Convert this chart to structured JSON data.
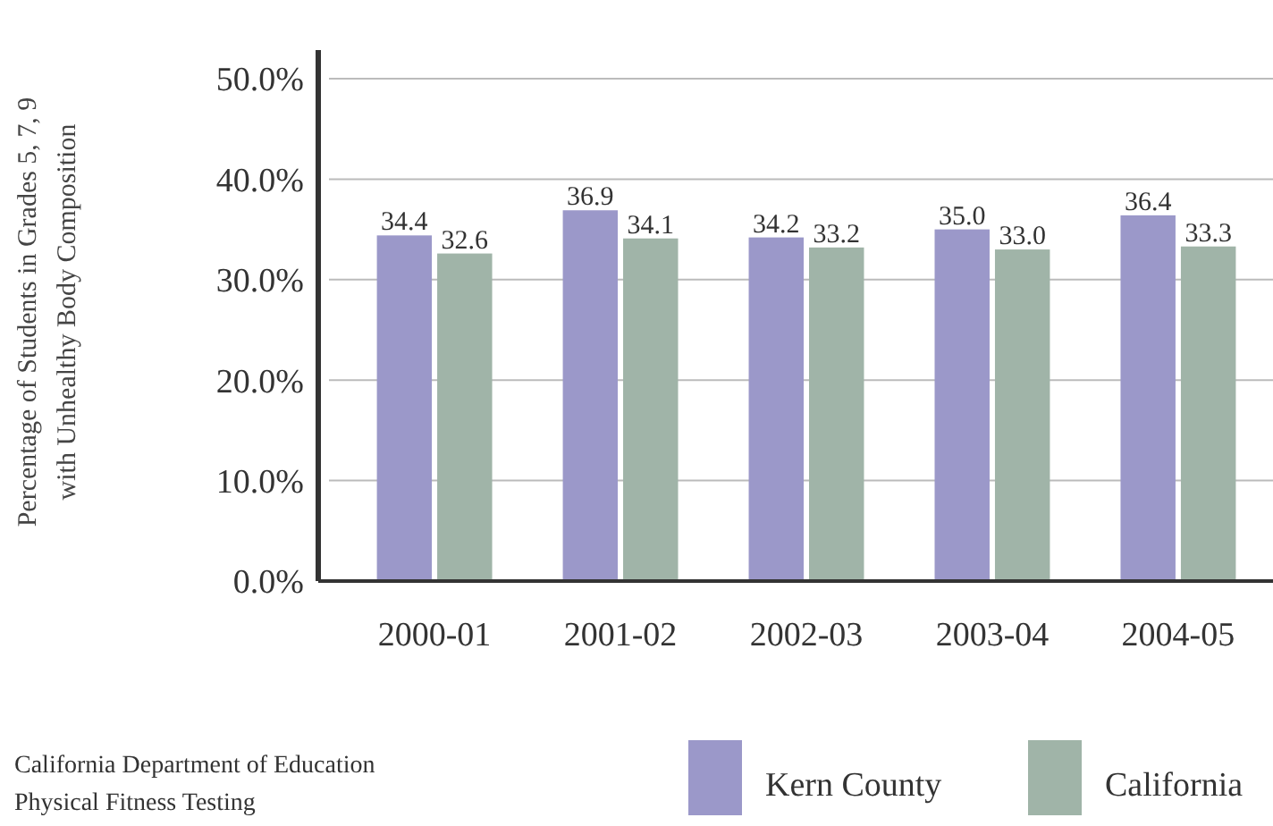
{
  "chart_data": {
    "type": "bar",
    "ylabel": "Percentage of Students in Grades 5, 7, 9\nwith Unhealthy Body Composition",
    "categories": [
      "2000-01",
      "2001-02",
      "2002-03",
      "2003-04",
      "2004-05"
    ],
    "series": [
      {
        "name": "Kern County",
        "color": "#9b98c9",
        "values": [
          34.4,
          36.9,
          34.2,
          35.0,
          36.4
        ],
        "value_labels": [
          "34.4",
          "36.9",
          "34.2",
          "35.0",
          "36.4"
        ]
      },
      {
        "name": "California",
        "color": "#a0b4a8",
        "values": [
          32.6,
          34.1,
          33.2,
          33.0,
          33.3
        ],
        "value_labels": [
          "32.6",
          "34.1",
          "33.2",
          "33.0",
          "33.3"
        ]
      }
    ],
    "ylim": [
      0,
      50
    ],
    "yticks": [
      {
        "value": 0,
        "label": "0.0%"
      },
      {
        "value": 10,
        "label": "10.0%"
      },
      {
        "value": 20,
        "label": "20.0%"
      },
      {
        "value": 30,
        "label": "30.0%"
      },
      {
        "value": 40,
        "label": "40.0%"
      },
      {
        "value": 50,
        "label": "50.0%"
      }
    ],
    "grid": "y",
    "legend": "bottom right",
    "annotations": [
      "California Department of Education",
      "Physical Fitness Testing"
    ]
  }
}
